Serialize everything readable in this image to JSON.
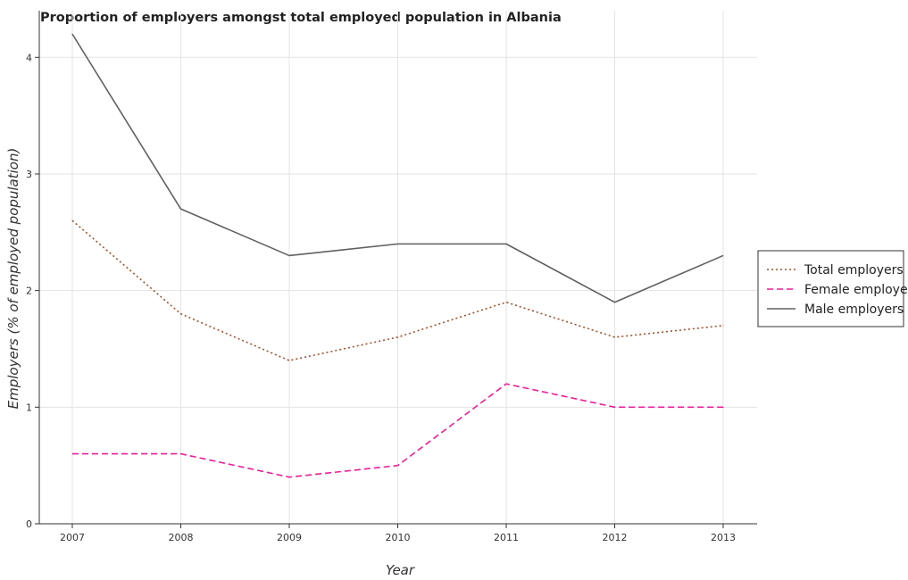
{
  "chart_data": {
    "type": "line",
    "title": "Proportion of employers amongst total employed population in Albania",
    "xlabel": "Year",
    "ylabel": "Employers (% of employed population)",
    "categories": [
      "2007",
      "2008",
      "2009",
      "2010",
      "2011",
      "2012",
      "2013"
    ],
    "ylim": [
      0,
      4.4
    ],
    "yticks": [
      "0",
      "1",
      "2",
      "3",
      "4"
    ],
    "grid": true,
    "legend_position": "right",
    "series": [
      {
        "name": "Total employers",
        "values": [
          2.6,
          1.8,
          1.4,
          1.6,
          1.9,
          1.6,
          1.7
        ],
        "color": "#a0522d",
        "dash": "dotted"
      },
      {
        "name": "Female employers",
        "values": [
          0.6,
          0.6,
          0.4,
          0.5,
          1.2,
          1.0,
          1.0
        ],
        "color": "#ee1c9a",
        "dash": "dashed"
      },
      {
        "name": "Male employers",
        "values": [
          4.2,
          2.7,
          2.3,
          2.4,
          2.4,
          1.9,
          2.3
        ],
        "color": "#606060",
        "dash": "solid"
      }
    ]
  }
}
